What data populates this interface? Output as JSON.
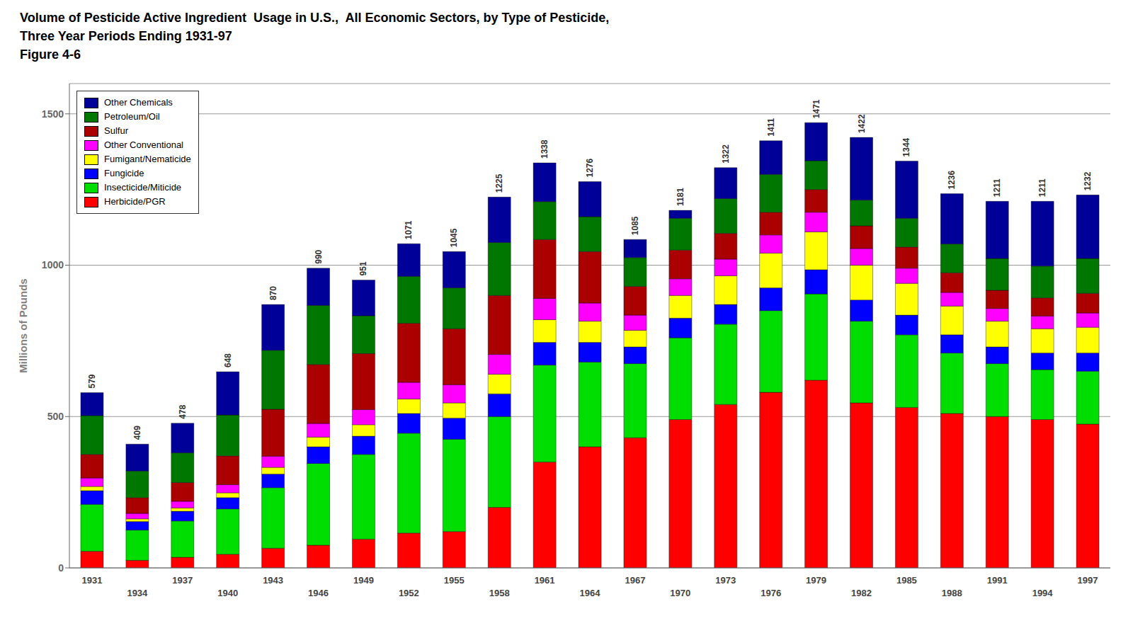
{
  "chart_data": {
    "type": "bar",
    "stacked": true,
    "title": "Volume of Pesticide Active Ingredient  Usage in U.S.,  All Economic Sectors, by Type of Pesticide,",
    "subtitle": "Three Year Periods Ending 1931-97",
    "annotations": [
      "Figure 4-6"
    ],
    "ylabel": "Millions of Pounds",
    "categories": [
      "1931",
      "1934",
      "1937",
      "1940",
      "1943",
      "1946",
      "1949",
      "1952",
      "1955",
      "1958",
      "1961",
      "1964",
      "1967",
      "1970",
      "1973",
      "1976",
      "1979",
      "1982",
      "1985",
      "1988",
      "1991",
      "1994",
      "1997"
    ],
    "series": [
      {
        "name": "Herbicide/PGR",
        "color": "#FF0000",
        "values": [
          55,
          25,
          35,
          45,
          65,
          75,
          95,
          115,
          120,
          200,
          350,
          400,
          430,
          490,
          540,
          580,
          620,
          545,
          530,
          510,
          500,
          490,
          475
        ]
      },
      {
        "name": "Insecticide/Miticide",
        "color": "#00DD00",
        "values": [
          155,
          100,
          120,
          150,
          200,
          270,
          280,
          330,
          305,
          300,
          320,
          280,
          245,
          270,
          265,
          270,
          285,
          270,
          240,
          200,
          175,
          165,
          175
        ]
      },
      {
        "name": "Fungicide",
        "color": "#0000FF",
        "values": [
          45,
          28,
          32,
          37,
          45,
          55,
          60,
          65,
          70,
          75,
          75,
          65,
          55,
          65,
          65,
          75,
          80,
          70,
          65,
          60,
          55,
          55,
          60
        ]
      },
      {
        "name": "Fumigant/Nematicide",
        "color": "#FFFF00",
        "values": [
          14,
          9,
          11,
          16,
          22,
          32,
          38,
          48,
          50,
          65,
          75,
          70,
          55,
          75,
          95,
          115,
          125,
          115,
          105,
          95,
          85,
          80,
          85
        ]
      },
      {
        "name": "Other Conventional",
        "color": "#FF00FF",
        "values": [
          28,
          18,
          22,
          27,
          37,
          45,
          50,
          55,
          60,
          65,
          70,
          60,
          50,
          55,
          55,
          60,
          65,
          55,
          50,
          45,
          42,
          42,
          47
        ]
      },
      {
        "name": "Sulfur",
        "color": "#AA0000",
        "values": [
          78,
          52,
          62,
          95,
          155,
          195,
          185,
          195,
          185,
          195,
          195,
          170,
          95,
          95,
          85,
          75,
          75,
          75,
          70,
          65,
          60,
          60,
          65
        ]
      },
      {
        "name": "Petroleum/Oil",
        "color": "#007700",
        "values": [
          128,
          88,
          98,
          135,
          195,
          195,
          125,
          155,
          135,
          175,
          125,
          115,
          95,
          105,
          115,
          125,
          95,
          85,
          95,
          95,
          105,
          105,
          115
        ]
      },
      {
        "name": "Other Chemicals",
        "color": "#000099",
        "values": [
          76,
          89,
          98,
          143,
          151,
          123,
          118,
          108,
          120,
          150,
          128,
          116,
          60,
          26,
          102,
          111,
          126,
          207,
          189,
          166,
          189,
          214,
          210
        ]
      }
    ],
    "totals": [
      579,
      409,
      478,
      648,
      870,
      990,
      951,
      1071,
      1045,
      1225,
      1338,
      1276,
      1085,
      1181,
      1322,
      1411,
      1471,
      1422,
      1344,
      1236,
      1211,
      1211,
      1232
    ],
    "ylim": [
      0,
      1600
    ],
    "yticks": [
      0,
      500,
      1000,
      1500
    ],
    "grid": true,
    "legend": "upper left"
  }
}
